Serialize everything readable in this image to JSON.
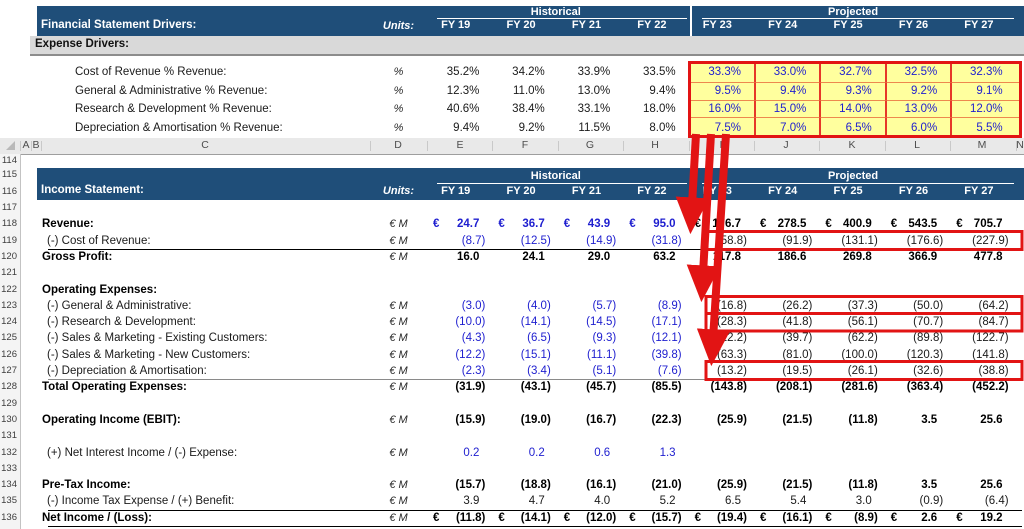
{
  "colors": {
    "banner_blue": "#1F4E79",
    "input_blue": "#1E1ECF",
    "highlight_yellow": "#FFFF9E",
    "annotation_red": "#E21414",
    "band_gray": "#D9D9D9"
  },
  "years": {
    "historical_label": "Historical",
    "projected_label": "Projected",
    "all": [
      "FY 19",
      "FY 20",
      "FY 21",
      "FY 22",
      "FY 23",
      "FY 24",
      "FY 25",
      "FY 26",
      "FY 27"
    ],
    "historical_count": 4
  },
  "drivers": {
    "title": "Financial Statement Drivers:",
    "units_label": "Units:",
    "section_label": "Expense Drivers:",
    "rows": [
      {
        "label": "Cost of Revenue % Revenue:",
        "unit": "%",
        "historical": [
          "35.2%",
          "34.2%",
          "33.9%",
          "33.5%"
        ],
        "projected": [
          "33.3%",
          "33.0%",
          "32.7%",
          "32.5%",
          "32.3%"
        ]
      },
      {
        "label": "General & Administrative % Revenue:",
        "unit": "%",
        "historical": [
          "12.3%",
          "11.0%",
          "13.0%",
          "9.4%"
        ],
        "projected": [
          "9.5%",
          "9.4%",
          "9.3%",
          "9.2%",
          "9.1%"
        ]
      },
      {
        "label": "Research & Development % Revenue:",
        "unit": "%",
        "historical": [
          "40.6%",
          "38.4%",
          "33.1%",
          "18.0%"
        ],
        "projected": [
          "16.0%",
          "15.0%",
          "14.0%",
          "13.0%",
          "12.0%"
        ]
      },
      {
        "label": "Depreciation & Amortisation % Revenue:",
        "unit": "%",
        "historical": [
          "9.4%",
          "9.2%",
          "11.5%",
          "8.0%"
        ],
        "projected": [
          "7.5%",
          "7.0%",
          "6.5%",
          "6.0%",
          "5.5%"
        ]
      }
    ]
  },
  "spreadsheet": {
    "column_letters": [
      "A",
      "B",
      "C",
      "D",
      "E",
      "F",
      "G",
      "H",
      "I",
      "J",
      "K",
      "L",
      "M",
      "N"
    ],
    "row_numbers": [
      114,
      115,
      116,
      117,
      118,
      119,
      120,
      121,
      122,
      123,
      124,
      125,
      126,
      127,
      128,
      129,
      130,
      131,
      132,
      133,
      134,
      135,
      136
    ]
  },
  "income_statement": {
    "title": "Income Statement:",
    "units_label": "Units:",
    "rows": [
      {
        "row": 118,
        "label": "Revenue:",
        "unit": "€ M",
        "bold": true,
        "euro": true,
        "hist_blue": true,
        "historical": [
          "24.7",
          "36.7",
          "43.9",
          "95.0"
        ],
        "projected": [
          "176.7",
          "278.5",
          "400.9",
          "543.5",
          "705.7"
        ]
      },
      {
        "row": 119,
        "label": "(-) Cost of Revenue:",
        "unit": "€ M",
        "hist_blue": true,
        "historical": [
          "(8.7)",
          "(12.5)",
          "(14.9)",
          "(31.8)"
        ],
        "projected": [
          "(58.8)",
          "(91.9)",
          "(131.1)",
          "(176.6)",
          "(227.9)"
        ],
        "border_bottom": "black"
      },
      {
        "row": 120,
        "label": "Gross Profit:",
        "unit": "€ M",
        "bold": true,
        "historical": [
          "16.0",
          "24.1",
          "29.0",
          "63.2"
        ],
        "projected": [
          "117.8",
          "186.6",
          "269.8",
          "366.9",
          "477.8"
        ]
      },
      {
        "row": 122,
        "label": "Operating Expenses:",
        "unit": "",
        "bold": true,
        "historical": [
          "",
          "",
          "",
          ""
        ],
        "projected": [
          "",
          "",
          "",
          "",
          ""
        ]
      },
      {
        "row": 123,
        "label": "(-) General & Administrative:",
        "unit": "€ M",
        "hist_blue": true,
        "historical": [
          "(3.0)",
          "(4.0)",
          "(5.7)",
          "(8.9)"
        ],
        "projected": [
          "(16.8)",
          "(26.2)",
          "(37.3)",
          "(50.0)",
          "(64.2)"
        ]
      },
      {
        "row": 124,
        "label": "(-) Research & Development:",
        "unit": "€ M",
        "hist_blue": true,
        "historical": [
          "(10.0)",
          "(14.1)",
          "(14.5)",
          "(17.1)"
        ],
        "projected": [
          "(28.3)",
          "(41.8)",
          "(56.1)",
          "(70.7)",
          "(84.7)"
        ]
      },
      {
        "row": 125,
        "label": "(-) Sales & Marketing - Existing Customers:",
        "unit": "€ M",
        "hist_blue": true,
        "historical": [
          "(4.3)",
          "(6.5)",
          "(9.3)",
          "(12.1)"
        ],
        "projected": [
          "(22.2)",
          "(39.7)",
          "(62.2)",
          "(89.8)",
          "(122.7)"
        ]
      },
      {
        "row": 126,
        "label": "(-) Sales & Marketing - New Customers:",
        "unit": "€ M",
        "hist_blue": true,
        "historical": [
          "(12.2)",
          "(15.1)",
          "(11.1)",
          "(39.8)"
        ],
        "projected": [
          "(63.3)",
          "(81.0)",
          "(100.0)",
          "(120.3)",
          "(141.8)"
        ]
      },
      {
        "row": 127,
        "label": "(-) Depreciation & Amortisation:",
        "unit": "€ M",
        "hist_blue": true,
        "historical": [
          "(2.3)",
          "(3.4)",
          "(5.1)",
          "(7.6)"
        ],
        "projected": [
          "(13.2)",
          "(19.5)",
          "(26.1)",
          "(32.6)",
          "(38.8)"
        ],
        "border_bottom": "gray"
      },
      {
        "row": 128,
        "label": "Total Operating Expenses:",
        "unit": "€ M",
        "bold": true,
        "historical": [
          "(31.9)",
          "(43.1)",
          "(45.7)",
          "(85.5)"
        ],
        "projected": [
          "(143.8)",
          "(208.1)",
          "(281.6)",
          "(363.4)",
          "(452.2)"
        ]
      },
      {
        "row": 130,
        "label": "Operating Income (EBIT):",
        "unit": "€ M",
        "bold": true,
        "historical": [
          "(15.9)",
          "(19.0)",
          "(16.7)",
          "(22.3)"
        ],
        "projected": [
          "(25.9)",
          "(21.5)",
          "(11.8)",
          "3.5",
          "25.6"
        ]
      },
      {
        "row": 132,
        "label": "(+) Net Interest Income / (-) Expense:",
        "unit": "€ M",
        "hist_blue": true,
        "historical": [
          "0.2",
          "0.2",
          "0.6",
          "1.3"
        ],
        "projected": [
          "",
          "",
          "",
          "",
          ""
        ]
      },
      {
        "row": 134,
        "label": "Pre-Tax Income:",
        "unit": "€ M",
        "bold": true,
        "historical": [
          "(15.7)",
          "(18.8)",
          "(16.1)",
          "(21.0)"
        ],
        "projected": [
          "(25.9)",
          "(21.5)",
          "(11.8)",
          "3.5",
          "25.6"
        ]
      },
      {
        "row": 135,
        "label": "(-) Income Tax Expense / (+) Benefit:",
        "unit": "€ M",
        "historical": [
          "3.9",
          "4.7",
          "4.0",
          "5.2"
        ],
        "projected": [
          "6.5",
          "5.4",
          "3.0",
          "(0.9)",
          "(6.4)"
        ],
        "border_bottom": "black"
      },
      {
        "row": 136,
        "label": "Net Income / (Loss):",
        "unit": "€ M",
        "bold": true,
        "euro": true,
        "historical": [
          "(11.8)",
          "(14.1)",
          "(12.0)",
          "(15.7)"
        ],
        "projected": [
          "(19.4)",
          "(16.1)",
          "(8.9)",
          "2.6",
          "19.2"
        ],
        "border_bottom": "black"
      }
    ]
  },
  "annotations": {
    "highlight": "projected expense driver assumptions",
    "arrows": "drivers flow into projected expense rows",
    "boxed_rows": [
      119,
      123,
      124,
      127
    ]
  }
}
